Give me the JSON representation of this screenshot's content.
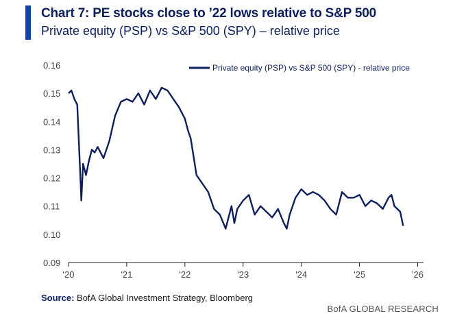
{
  "header": {
    "title": "Chart 7: PE stocks close to ’22 lows relative to S&P 500",
    "subtitle": "Private equity (PSP) vs  S&P 500 (SPY) – relative price"
  },
  "footer": {
    "source_label": "Source:",
    "source_text": "BofA Global Investment Strategy, Bloomberg",
    "brand": "BofA GLOBAL RESEARCH"
  },
  "colors": {
    "accent": "#0b45a8",
    "series": "#0d1f5c",
    "title": "#0b1f5c"
  },
  "chart_data": {
    "type": "line",
    "title": "Chart 7: PE stocks close to ’22 lows relative to S&P 500",
    "subtitle": "Private equity (PSP) vs  S&P 500 (SPY) – relative price",
    "xlabel": "",
    "ylabel": "",
    "xlim": [
      2020.0,
      2026.1
    ],
    "ylim": [
      0.09,
      0.16
    ],
    "xticks": [
      2020,
      2021,
      2022,
      2023,
      2024,
      2025,
      2026
    ],
    "xtick_labels": [
      "'20",
      "'21",
      "'22",
      "'23",
      "'24",
      "'25",
      "'26"
    ],
    "yticks": [
      0.09,
      0.1,
      0.11,
      0.12,
      0.13,
      0.14,
      0.15,
      0.16
    ],
    "ytick_labels": [
      "0.09",
      "0.10",
      "0.11",
      "0.12",
      "0.13",
      "0.14",
      "0.15",
      "0.16"
    ],
    "grid": false,
    "legend": {
      "position": "top-right"
    },
    "series": [
      {
        "name": "Private equity (PSP) vs S&P 500 (SPY) - relative price",
        "x": [
          2020.0,
          2020.05,
          2020.1,
          2020.15,
          2020.2,
          2020.22,
          2020.25,
          2020.3,
          2020.35,
          2020.4,
          2020.45,
          2020.5,
          2020.6,
          2020.7,
          2020.8,
          2020.9,
          2021.0,
          2021.1,
          2021.2,
          2021.3,
          2021.4,
          2021.5,
          2021.6,
          2021.7,
          2021.8,
          2021.9,
          2022.0,
          2022.05,
          2022.1,
          2022.2,
          2022.3,
          2022.4,
          2022.5,
          2022.6,
          2022.7,
          2022.75,
          2022.8,
          2022.85,
          2022.9,
          2023.0,
          2023.1,
          2023.2,
          2023.3,
          2023.4,
          2023.5,
          2023.6,
          2023.7,
          2023.75,
          2023.8,
          2023.9,
          2024.0,
          2024.1,
          2024.2,
          2024.3,
          2024.4,
          2024.5,
          2024.6,
          2024.7,
          2024.8,
          2024.9,
          2025.0,
          2025.1,
          2025.2,
          2025.3,
          2025.4,
          2025.5,
          2025.55,
          2025.6,
          2025.65,
          2025.7,
          2025.75
        ],
        "values": [
          0.15,
          0.151,
          0.148,
          0.146,
          0.122,
          0.112,
          0.125,
          0.121,
          0.126,
          0.13,
          0.129,
          0.131,
          0.127,
          0.133,
          0.142,
          0.147,
          0.148,
          0.147,
          0.15,
          0.146,
          0.151,
          0.148,
          0.152,
          0.151,
          0.148,
          0.145,
          0.141,
          0.137,
          0.134,
          0.121,
          0.118,
          0.115,
          0.109,
          0.107,
          0.102,
          0.106,
          0.11,
          0.104,
          0.109,
          0.112,
          0.114,
          0.107,
          0.11,
          0.108,
          0.106,
          0.109,
          0.104,
          0.102,
          0.107,
          0.113,
          0.116,
          0.114,
          0.115,
          0.114,
          0.112,
          0.109,
          0.107,
          0.115,
          0.113,
          0.113,
          0.114,
          0.11,
          0.112,
          0.111,
          0.109,
          0.113,
          0.114,
          0.11,
          0.109,
          0.108,
          0.103
        ]
      }
    ]
  }
}
